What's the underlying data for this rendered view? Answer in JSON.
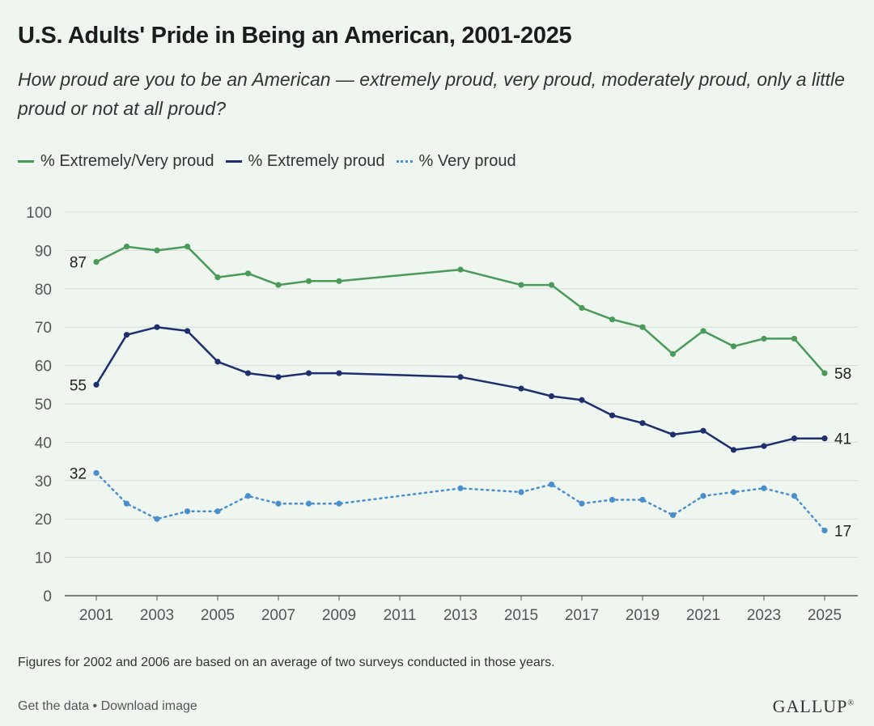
{
  "header": {
    "title": "U.S. Adults' Pride in Being an American, 2001-2025",
    "subtitle": "How proud are you to be an American — extremely proud, very proud, moderately proud, only a little proud or not at all proud?"
  },
  "legend": {
    "items": [
      {
        "label": "% Extremely/Very proud",
        "color": "#4a9a5a",
        "style": "solid"
      },
      {
        "label": "% Extremely proud",
        "color": "#1e2f6e",
        "style": "solid"
      },
      {
        "label": "% Very proud",
        "color": "#4a8fcc",
        "style": "dotted"
      }
    ]
  },
  "chart_data": {
    "type": "line",
    "title": "U.S. Adults' Pride in Being an American, 2001-2025",
    "xlabel": "",
    "ylabel": "",
    "ylim": [
      0,
      100
    ],
    "yticks": [
      0,
      10,
      20,
      30,
      40,
      50,
      60,
      70,
      80,
      90,
      100
    ],
    "xticks": [
      2001,
      2003,
      2005,
      2007,
      2009,
      2011,
      2013,
      2015,
      2017,
      2019,
      2021,
      2023,
      2025
    ],
    "grid": true,
    "legend_position": "top-left",
    "x": [
      2001,
      2002,
      2003,
      2004,
      2005,
      2006,
      2007,
      2008,
      2009,
      2013,
      2015,
      2016,
      2017,
      2018,
      2019,
      2020,
      2021,
      2022,
      2023,
      2024,
      2025
    ],
    "series": [
      {
        "name": "% Extremely/Very proud",
        "color": "#4a9a5a",
        "style": "solid",
        "values": [
          87,
          91,
          90,
          91,
          83,
          84,
          81,
          82,
          82,
          85,
          81,
          81,
          75,
          72,
          70,
          63,
          69,
          65,
          67,
          67,
          58
        ],
        "end_labels": [
          "87",
          "58"
        ]
      },
      {
        "name": "% Extremely proud",
        "color": "#1e2f6e",
        "style": "solid",
        "values": [
          55,
          68,
          70,
          69,
          61,
          58,
          57,
          58,
          58,
          57,
          54,
          52,
          51,
          47,
          45,
          42,
          43,
          38,
          39,
          41,
          41
        ],
        "end_labels": [
          "55",
          "41"
        ]
      },
      {
        "name": "% Very proud",
        "color": "#4a8fcc",
        "style": "dotted",
        "values": [
          32,
          24,
          20,
          22,
          22,
          26,
          24,
          24,
          24,
          28,
          27,
          29,
          24,
          25,
          25,
          21,
          26,
          27,
          28,
          26,
          17
        ],
        "end_labels": [
          "32",
          "17"
        ]
      }
    ]
  },
  "note": "Figures for 2002 and 2006 are based on an average of two surveys conducted in those years.",
  "footer": {
    "get_data": "Get the data",
    "separator": "•",
    "download": "Download image",
    "brand": "GALLUP",
    "brand_mark": "®"
  }
}
